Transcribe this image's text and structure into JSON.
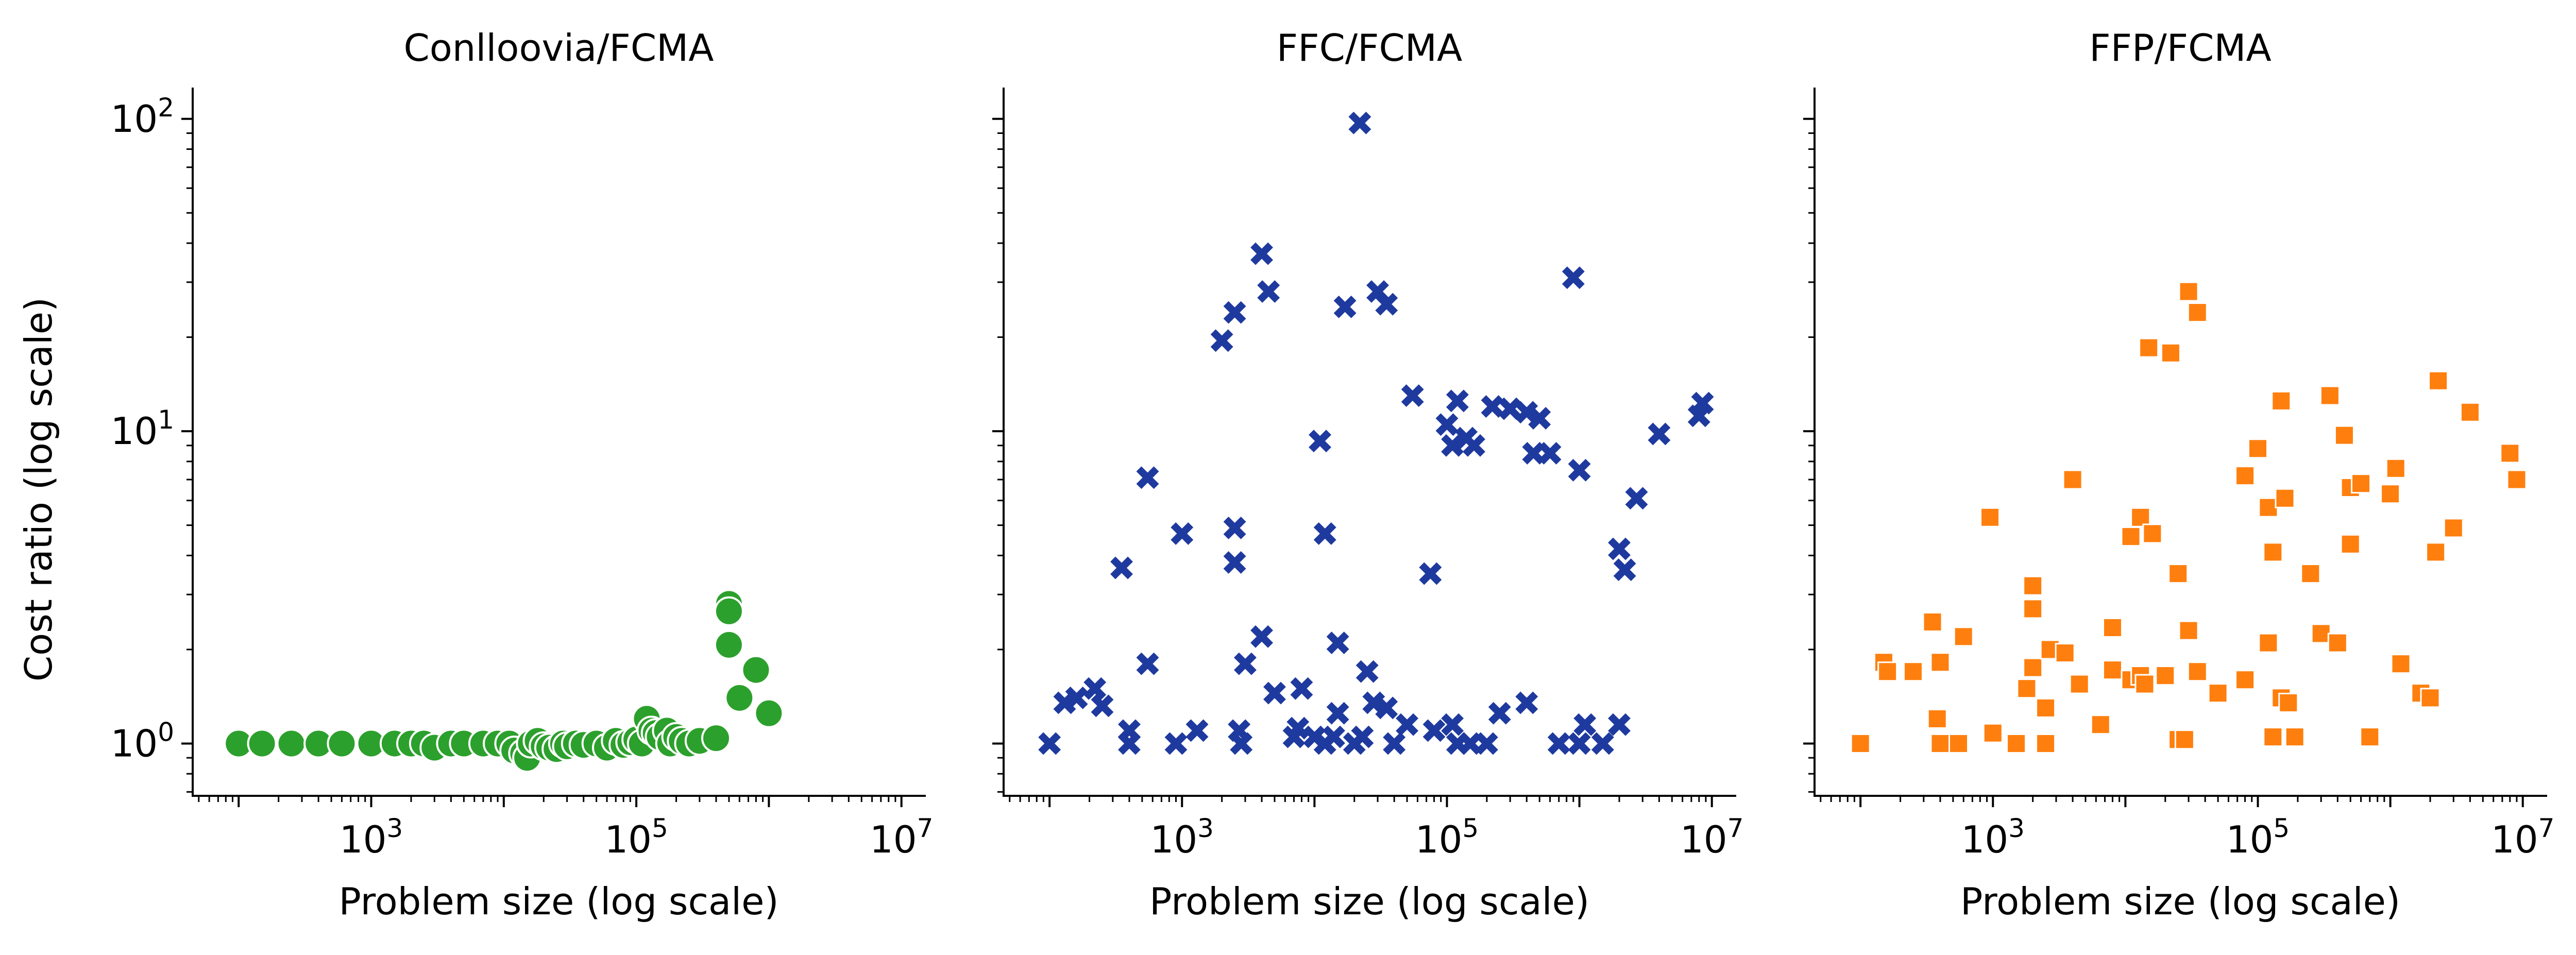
{
  "figure": {
    "ylabel": "Cost ratio (log scale)",
    "y_ticklabels": [
      {
        "base": "10",
        "exp": "0",
        "value": 1
      },
      {
        "base": "10",
        "exp": "1",
        "value": 10
      },
      {
        "base": "10",
        "exp": "2",
        "value": 100
      }
    ],
    "x_ticklabels": [
      {
        "base": "10",
        "exp": "3",
        "value": 1000
      },
      {
        "base": "10",
        "exp": "5",
        "value": 100000
      },
      {
        "base": "10",
        "exp": "7",
        "value": 10000000
      }
    ]
  },
  "chart_data": [
    {
      "type": "scatter",
      "title": "Conlloovia/FCMA",
      "xlabel": "Problem size (log scale)",
      "ylabel": "Cost ratio (log scale)",
      "xscale": "log",
      "yscale": "log",
      "xlim": [
        45,
        15000000
      ],
      "ylim": [
        0.68,
        125
      ],
      "marker": "circle",
      "color": "#2ca02c",
      "points": [
        [
          100,
          1.0
        ],
        [
          150,
          1.0
        ],
        [
          250,
          1.0
        ],
        [
          400,
          1.0
        ],
        [
          600,
          1.0
        ],
        [
          1000,
          1.0
        ],
        [
          1500,
          1.0
        ],
        [
          2000,
          1.0
        ],
        [
          2500,
          1.0
        ],
        [
          3000,
          0.97
        ],
        [
          4000,
          1.0
        ],
        [
          5000,
          1.0
        ],
        [
          7000,
          1.0
        ],
        [
          9000,
          1.0
        ],
        [
          11000,
          1.0
        ],
        [
          12000,
          0.95
        ],
        [
          14000,
          0.93
        ],
        [
          15000,
          0.9
        ],
        [
          16000,
          1.0
        ],
        [
          18000,
          1.02
        ],
        [
          20000,
          0.98
        ],
        [
          22000,
          0.97
        ],
        [
          25000,
          0.96
        ],
        [
          28000,
          1.0
        ],
        [
          30000,
          0.98
        ],
        [
          35000,
          1.0
        ],
        [
          40000,
          0.99
        ],
        [
          50000,
          1.0
        ],
        [
          60000,
          0.97
        ],
        [
          70000,
          1.02
        ],
        [
          80000,
          0.99
        ],
        [
          90000,
          1.01
        ],
        [
          100000,
          1.03
        ],
        [
          110000,
          1.0
        ],
        [
          120000,
          1.2
        ],
        [
          130000,
          1.1
        ],
        [
          140000,
          1.08
        ],
        [
          150000,
          1.05
        ],
        [
          170000,
          1.1
        ],
        [
          180000,
          1.0
        ],
        [
          200000,
          1.05
        ],
        [
          220000,
          1.02
        ],
        [
          250000,
          1.0
        ],
        [
          300000,
          1.02
        ],
        [
          400000,
          1.04
        ],
        [
          500000,
          2.8
        ],
        [
          500000,
          2.65
        ],
        [
          500000,
          2.07
        ],
        [
          600000,
          1.4
        ],
        [
          800000,
          1.72
        ],
        [
          1000000,
          1.25
        ]
      ]
    },
    {
      "type": "scatter",
      "title": "FFC/FCMA",
      "xlabel": "Problem size (log scale)",
      "xscale": "log",
      "yscale": "log",
      "xlim": [
        45,
        15000000
      ],
      "ylim": [
        0.68,
        125
      ],
      "marker": "x",
      "color": "#1f3a9e",
      "points": [
        [
          100,
          1.0
        ],
        [
          130,
          1.35
        ],
        [
          160,
          1.4
        ],
        [
          220,
          1.5
        ],
        [
          250,
          1.32
        ],
        [
          350,
          3.65
        ],
        [
          400,
          1.1
        ],
        [
          400,
          1.0
        ],
        [
          550,
          1.8
        ],
        [
          550,
          7.1
        ],
        [
          900,
          1.0
        ],
        [
          1000,
          4.7
        ],
        [
          1300,
          1.1
        ],
        [
          2000,
          19.5
        ],
        [
          2500,
          24.0
        ],
        [
          2500,
          4.9
        ],
        [
          2500,
          3.8
        ],
        [
          2700,
          1.1
        ],
        [
          2800,
          1.0
        ],
        [
          3000,
          1.8
        ],
        [
          4000,
          37.0
        ],
        [
          4000,
          2.2
        ],
        [
          4500,
          28.0
        ],
        [
          5000,
          1.45
        ],
        [
          7000,
          1.05
        ],
        [
          7500,
          1.12
        ],
        [
          8000,
          1.5
        ],
        [
          10000,
          1.05
        ],
        [
          11000,
          9.3
        ],
        [
          12000,
          1.0
        ],
        [
          12000,
          4.7
        ],
        [
          14000,
          1.05
        ],
        [
          15000,
          2.1
        ],
        [
          15000,
          1.25
        ],
        [
          17000,
          25.0
        ],
        [
          20000,
          1.0
        ],
        [
          22000,
          97.0
        ],
        [
          23000,
          1.05
        ],
        [
          25000,
          1.7
        ],
        [
          28000,
          1.35
        ],
        [
          30000,
          28.0
        ],
        [
          35000,
          25.5
        ],
        [
          35000,
          1.3
        ],
        [
          40000,
          1.0
        ],
        [
          50000,
          1.15
        ],
        [
          55000,
          13.0
        ],
        [
          75000,
          3.5
        ],
        [
          80000,
          1.1
        ],
        [
          100000,
          10.5
        ],
        [
          110000,
          9.0
        ],
        [
          110000,
          1.15
        ],
        [
          120000,
          12.5
        ],
        [
          120000,
          1.0
        ],
        [
          140000,
          9.5
        ],
        [
          150000,
          1.0
        ],
        [
          160000,
          9.0
        ],
        [
          200000,
          1.0
        ],
        [
          220000,
          12.0
        ],
        [
          250000,
          1.25
        ],
        [
          300000,
          11.8
        ],
        [
          400000,
          11.5
        ],
        [
          400000,
          1.35
        ],
        [
          450000,
          8.5
        ],
        [
          500000,
          11.0
        ],
        [
          600000,
          8.5
        ],
        [
          700000,
          1.0
        ],
        [
          900000,
          31.0
        ],
        [
          1000000,
          7.5
        ],
        [
          1000000,
          1.0
        ],
        [
          1100000,
          1.15
        ],
        [
          1500000,
          1.0
        ],
        [
          2000000,
          4.2
        ],
        [
          2000000,
          1.15
        ],
        [
          2200000,
          3.6
        ],
        [
          2700000,
          6.1
        ],
        [
          4000000,
          9.8
        ],
        [
          8000000,
          11.2
        ],
        [
          8500000,
          12.3
        ]
      ]
    },
    {
      "type": "scatter",
      "title": "FFP/FCMA",
      "xlabel": "Problem size (log scale)",
      "xscale": "log",
      "yscale": "log",
      "xlim": [
        45,
        15000000
      ],
      "ylim": [
        0.68,
        125
      ],
      "marker": "square",
      "color": "#ff7f0e",
      "points": [
        [
          100,
          1.0
        ],
        [
          150,
          1.82
        ],
        [
          160,
          1.7
        ],
        [
          250,
          1.7
        ],
        [
          350,
          2.45
        ],
        [
          380,
          1.2
        ],
        [
          400,
          1.82
        ],
        [
          400,
          1.0
        ],
        [
          550,
          1.0
        ],
        [
          600,
          2.2
        ],
        [
          950,
          5.3
        ],
        [
          1000,
          1.08
        ],
        [
          1500,
          1.0
        ],
        [
          1800,
          1.5
        ],
        [
          2000,
          3.2
        ],
        [
          2000,
          2.7
        ],
        [
          2000,
          1.75
        ],
        [
          2500,
          1.3
        ],
        [
          2500,
          1.0
        ],
        [
          2700,
          2.0
        ],
        [
          3500,
          1.95
        ],
        [
          4000,
          7.0
        ],
        [
          4500,
          1.55
        ],
        [
          6500,
          1.15
        ],
        [
          8000,
          1.72
        ],
        [
          8000,
          2.35
        ],
        [
          11000,
          1.6
        ],
        [
          11000,
          4.6
        ],
        [
          13000,
          1.65
        ],
        [
          13000,
          5.3
        ],
        [
          14000,
          1.55
        ],
        [
          15000,
          18.5
        ],
        [
          16000,
          4.7
        ],
        [
          20000,
          1.65
        ],
        [
          22000,
          17.8
        ],
        [
          25000,
          1.03
        ],
        [
          25000,
          3.5
        ],
        [
          28000,
          1.03
        ],
        [
          30000,
          2.3
        ],
        [
          30000,
          28.0
        ],
        [
          35000,
          1.7
        ],
        [
          35000,
          24.0
        ],
        [
          50000,
          1.45
        ],
        [
          80000,
          7.2
        ],
        [
          80000,
          1.6
        ],
        [
          100000,
          8.8
        ],
        [
          120000,
          2.1
        ],
        [
          120000,
          5.7
        ],
        [
          130000,
          4.1
        ],
        [
          130000,
          1.05
        ],
        [
          150000,
          12.5
        ],
        [
          150000,
          1.4
        ],
        [
          160000,
          6.1
        ],
        [
          170000,
          1.35
        ],
        [
          190000,
          1.05
        ],
        [
          250000,
          3.5
        ],
        [
          300000,
          2.25
        ],
        [
          350000,
          13.0
        ],
        [
          400000,
          2.1
        ],
        [
          450000,
          9.7
        ],
        [
          500000,
          6.6
        ],
        [
          500000,
          4.35
        ],
        [
          600000,
          6.8
        ],
        [
          700000,
          1.05
        ],
        [
          1000000,
          6.3
        ],
        [
          1100000,
          7.6
        ],
        [
          1200000,
          1.8
        ],
        [
          1700000,
          1.45
        ],
        [
          2000000,
          1.4
        ],
        [
          2200000,
          4.1
        ],
        [
          2300000,
          14.5
        ],
        [
          3000000,
          4.9
        ],
        [
          4000000,
          11.5
        ],
        [
          8000000,
          8.5
        ],
        [
          9000000,
          7.0
        ]
      ]
    }
  ]
}
